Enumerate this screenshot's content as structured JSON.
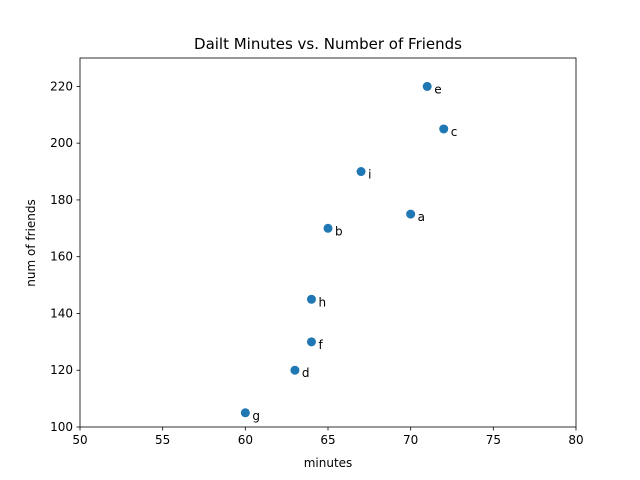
{
  "chart_data": {
    "type": "scatter",
    "title": "Dailt Minutes vs. Number of Friends",
    "xlabel": "minutes",
    "ylabel": "num of friends",
    "xlim": [
      50,
      80
    ],
    "ylim": [
      100,
      230
    ],
    "xticks": [
      50,
      55,
      60,
      65,
      70,
      75,
      80
    ],
    "yticks": [
      100,
      120,
      140,
      160,
      180,
      200,
      220
    ],
    "grid": false,
    "marker_color": "#1f77b4",
    "points": [
      {
        "label": "a",
        "x": 70,
        "y": 175
      },
      {
        "label": "b",
        "x": 65,
        "y": 170
      },
      {
        "label": "c",
        "x": 72,
        "y": 205
      },
      {
        "label": "d",
        "x": 63,
        "y": 120
      },
      {
        "label": "e",
        "x": 71,
        "y": 220
      },
      {
        "label": "f",
        "x": 64,
        "y": 130
      },
      {
        "label": "g",
        "x": 60,
        "y": 105
      },
      {
        "label": "h",
        "x": 64,
        "y": 145
      },
      {
        "label": "i",
        "x": 67,
        "y": 190
      }
    ]
  }
}
